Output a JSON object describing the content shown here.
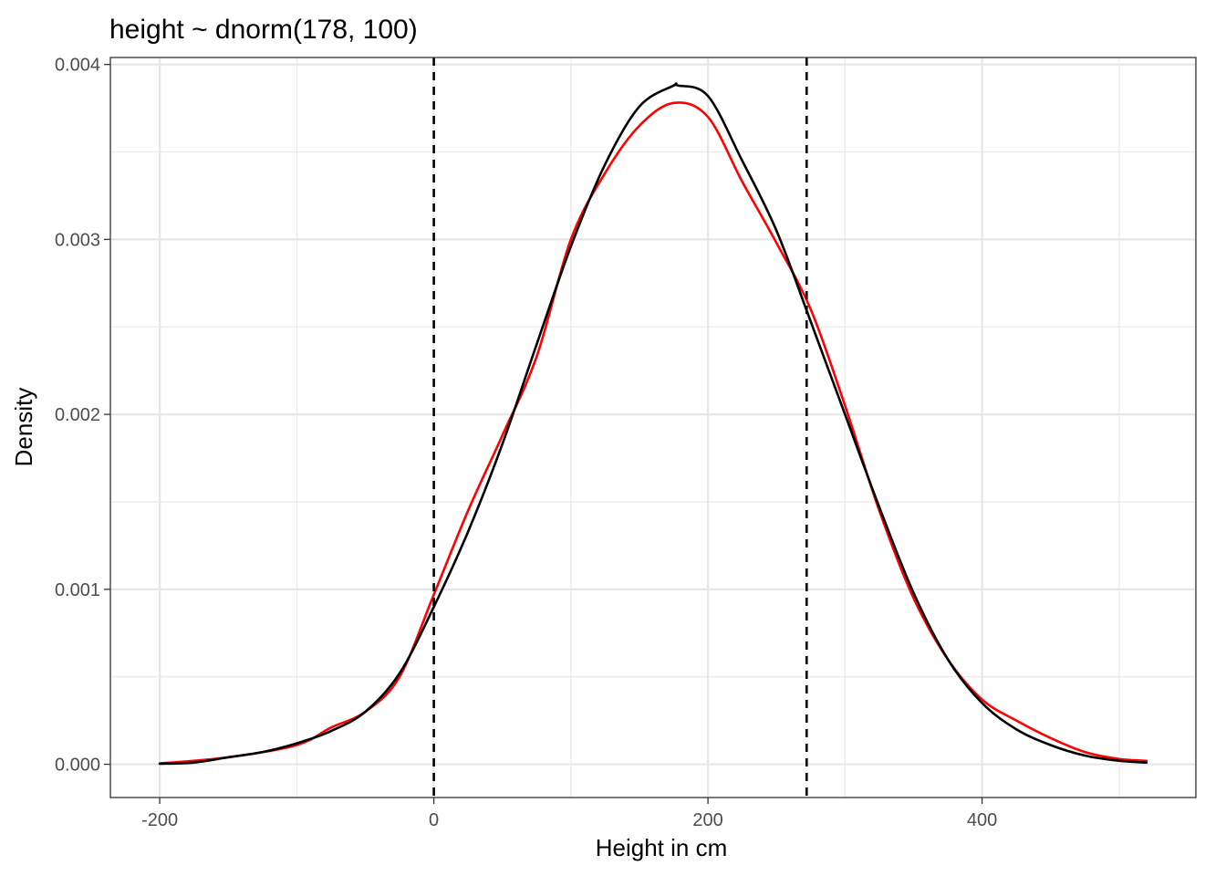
{
  "chart_data": {
    "type": "line",
    "title": "height ~ dnorm(178, 100)",
    "xlabel": "Height in cm",
    "ylabel": "Density",
    "xlim": [
      -236,
      556
    ],
    "ylim": [
      -0.00019,
      0.00404
    ],
    "x_ticks": [
      -200,
      0,
      200,
      400
    ],
    "x_tick_labels": [
      "-200",
      "0",
      "200",
      "400"
    ],
    "y_ticks": [
      0.0,
      0.001,
      0.002,
      0.003,
      0.004
    ],
    "y_tick_labels": [
      "0.000",
      "0.001",
      "0.002",
      "0.003",
      "0.004"
    ],
    "grid": true,
    "legend": "none",
    "series": [
      {
        "color": "#ff0000",
        "x": [
          -200,
          -150,
          -100,
          -75,
          -50,
          -25,
          0,
          25,
          50,
          75,
          100,
          125,
          150,
          175,
          200,
          225,
          250,
          275,
          300,
          325,
          350,
          375,
          400,
          425,
          450,
          475,
          500,
          520
        ],
        "y": [
          5e-06,
          4e-05,
          0.00011,
          0.00021,
          0.0003,
          0.0005,
          0.00097,
          0.00145,
          0.00188,
          0.00233,
          0.003,
          0.00338,
          0.00365,
          0.00378,
          0.0037,
          0.00333,
          0.00298,
          0.0026,
          0.00205,
          0.00145,
          0.00095,
          0.0006,
          0.00037,
          0.00025,
          0.00015,
          7e-05,
          3e-05,
          2e-05
        ]
      },
      {
        "color": "#000000",
        "x": [
          -200,
          -175,
          -150,
          -125,
          -100,
          -75,
          -50,
          -25,
          0,
          25,
          50,
          75,
          100,
          125,
          150,
          175,
          178,
          200,
          225,
          250,
          275,
          300,
          325,
          350,
          375,
          400,
          425,
          450,
          475,
          500,
          520
        ],
        "y": [
          3e-06,
          1e-05,
          4e-05,
          7e-05,
          0.00012,
          0.00019,
          0.0003,
          0.00052,
          0.0009,
          0.00133,
          0.00183,
          0.0024,
          0.00296,
          0.00343,
          0.00376,
          0.00388,
          0.00388,
          0.00382,
          0.00345,
          0.00305,
          0.00253,
          0.002,
          0.00147,
          0.00098,
          0.0006,
          0.00035,
          0.0002,
          0.00011,
          5e-05,
          2e-05,
          1e-05
        ]
      }
    ],
    "vlines": [
      {
        "x": 0,
        "style": "dashed",
        "color": "#000000"
      },
      {
        "x": 272,
        "style": "dashed",
        "color": "#000000"
      }
    ]
  }
}
